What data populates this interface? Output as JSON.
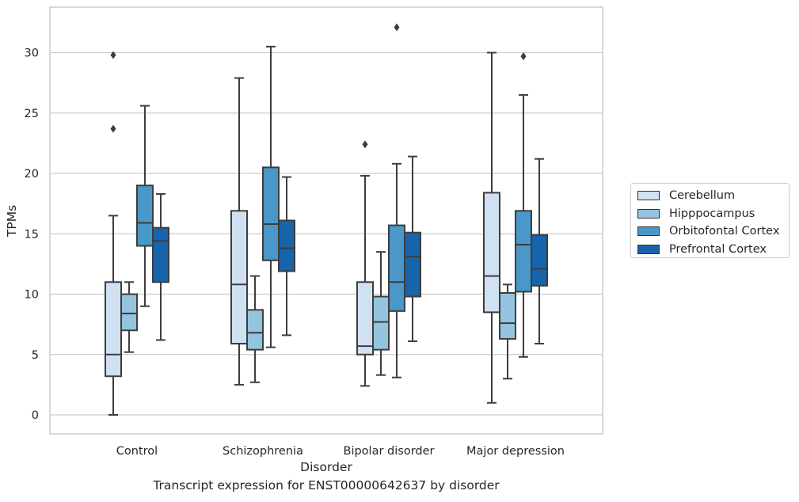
{
  "chart_data": {
    "type": "boxplot",
    "title": "",
    "xlabel": "Disorder",
    "ylabel": "TPMs",
    "caption": "Transcript expression for ENST00000642637 by disorder",
    "ylim": [
      -1.5,
      33.8
    ],
    "yticks": [
      0,
      5,
      10,
      15,
      20,
      25,
      30
    ],
    "categories": [
      "Control",
      "Schizophrenia",
      "Bipolar disorder",
      "Major depression"
    ],
    "grid": "horizontal",
    "legend_placement": "center-right, outside plot",
    "series": [
      {
        "name": "Cerebellum",
        "color": "#d0e1f2",
        "boxes": [
          {
            "whislo": 0.0,
            "q1": 3.2,
            "median": 5.0,
            "q3": 11.0,
            "whishi": 16.5,
            "fliers": [
              23.7,
              29.8
            ]
          },
          {
            "whislo": 2.5,
            "q1": 5.9,
            "median": 10.8,
            "q3": 16.9,
            "whishi": 27.9,
            "fliers": []
          },
          {
            "whislo": 2.4,
            "q1": 5.0,
            "median": 5.7,
            "q3": 11.0,
            "whishi": 19.8,
            "fliers": [
              22.4
            ]
          },
          {
            "whislo": 1.0,
            "q1": 8.5,
            "median": 11.5,
            "q3": 18.4,
            "whishi": 30.0,
            "fliers": []
          }
        ]
      },
      {
        "name": "Hipppocampus",
        "color": "#94c4df",
        "boxes": [
          {
            "whislo": 5.2,
            "q1": 7.0,
            "median": 8.4,
            "q3": 10.0,
            "whishi": 11.0,
            "fliers": []
          },
          {
            "whislo": 2.7,
            "q1": 5.4,
            "median": 6.8,
            "q3": 8.7,
            "whishi": 11.5,
            "fliers": []
          },
          {
            "whislo": 3.3,
            "q1": 5.4,
            "median": 7.7,
            "q3": 9.8,
            "whishi": 13.5,
            "fliers": []
          },
          {
            "whislo": 3.0,
            "q1": 6.3,
            "median": 7.6,
            "q3": 10.1,
            "whishi": 10.8,
            "fliers": []
          }
        ]
      },
      {
        "name": "Orbitofontal Cortex",
        "color": "#4a98c9",
        "boxes": [
          {
            "whislo": 9.0,
            "q1": 14.0,
            "median": 15.9,
            "q3": 19.0,
            "whishi": 25.6,
            "fliers": []
          },
          {
            "whislo": 5.6,
            "q1": 12.8,
            "median": 15.8,
            "q3": 20.5,
            "whishi": 30.5,
            "fliers": []
          },
          {
            "whislo": 3.1,
            "q1": 8.6,
            "median": 11.0,
            "q3": 15.7,
            "whishi": 20.8,
            "fliers": [
              32.1
            ]
          },
          {
            "whislo": 4.8,
            "q1": 10.2,
            "median": 14.1,
            "q3": 16.9,
            "whishi": 26.5,
            "fliers": [
              29.7
            ]
          }
        ]
      },
      {
        "name": "Prefrontal Cortex",
        "color": "#1764ab",
        "boxes": [
          {
            "whislo": 6.2,
            "q1": 11.0,
            "median": 14.4,
            "q3": 15.5,
            "whishi": 18.3,
            "fliers": []
          },
          {
            "whislo": 6.6,
            "q1": 11.9,
            "median": 13.8,
            "q3": 16.1,
            "whishi": 19.7,
            "fliers": []
          },
          {
            "whislo": 6.1,
            "q1": 9.8,
            "median": 13.1,
            "q3": 15.1,
            "whishi": 21.4,
            "fliers": []
          },
          {
            "whislo": 5.9,
            "q1": 10.7,
            "median": 12.1,
            "q3": 14.9,
            "whishi": 21.2,
            "fliers": []
          }
        ]
      }
    ]
  }
}
